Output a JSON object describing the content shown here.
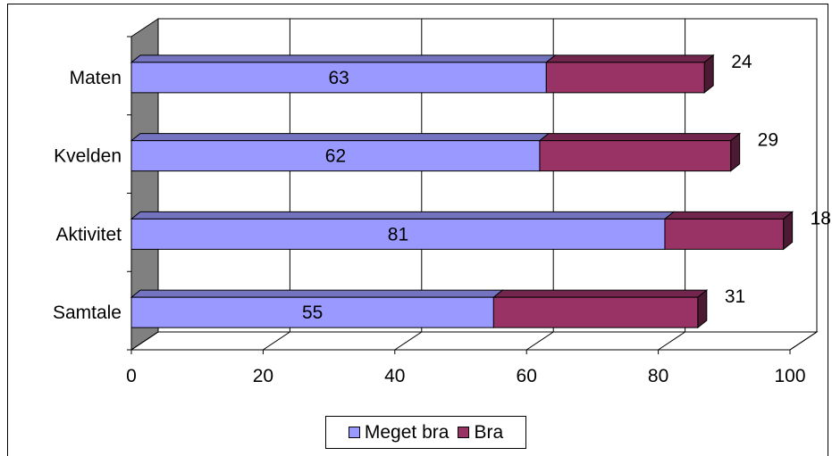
{
  "chart_data": {
    "type": "bar",
    "orientation": "horizontal",
    "stacked": true,
    "style": "3d",
    "categories": [
      "Maten",
      "Kvelden",
      "Aktivitet",
      "Samtale"
    ],
    "series": [
      {
        "name": "Meget bra",
        "values": [
          63,
          62,
          81,
          55
        ],
        "color": "#9999FF"
      },
      {
        "name": "Bra",
        "values": [
          24,
          29,
          18,
          31
        ],
        "color": "#993366"
      }
    ],
    "x_ticks": [
      "0",
      "20",
      "40",
      "60",
      "80",
      "100"
    ],
    "xlim": [
      0,
      100
    ],
    "grid": true,
    "legend_position": "bottom"
  },
  "legend": {
    "items": [
      {
        "label": "Meget bra",
        "color": "#9999FF"
      },
      {
        "label": "Bra",
        "color": "#993366"
      }
    ]
  }
}
